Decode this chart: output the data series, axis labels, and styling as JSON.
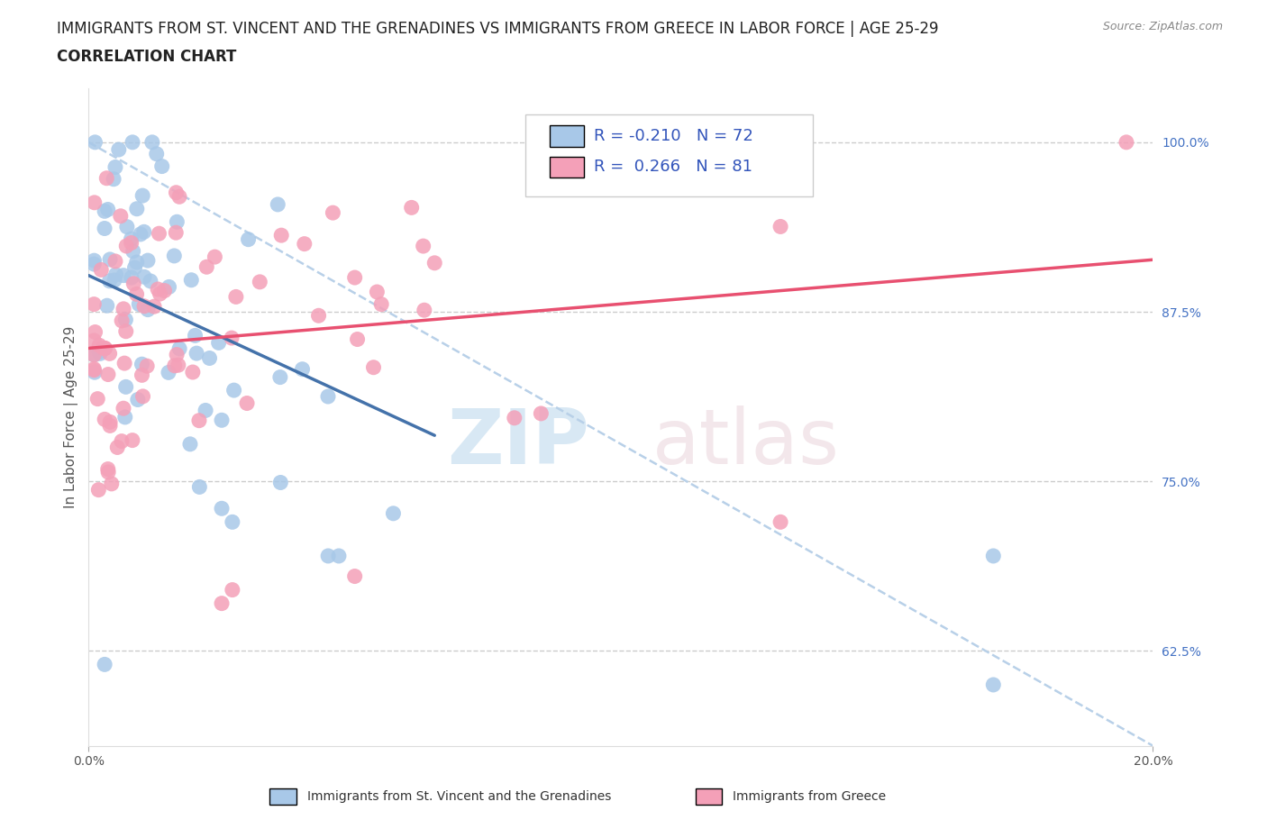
{
  "title_line1": "IMMIGRANTS FROM ST. VINCENT AND THE GRENADINES VS IMMIGRANTS FROM GREECE IN LABOR FORCE | AGE 25-29",
  "title_line2": "CORRELATION CHART",
  "source_text": "Source: ZipAtlas.com",
  "ylabel": "In Labor Force | Age 25-29",
  "legend_label1": "Immigrants from St. Vincent and the Grenadines",
  "legend_label2": "Immigrants from Greece",
  "r1": -0.21,
  "n1": 72,
  "r2": 0.266,
  "n2": 81,
  "color1": "#a8c8e8",
  "color2": "#f4a0b8",
  "line1_color": "#4472aa",
  "line2_color": "#e85070",
  "xlim": [
    0.0,
    0.2
  ],
  "ylim": [
    0.555,
    1.04
  ],
  "right_yticks": [
    1.0,
    0.875,
    0.75,
    0.625
  ],
  "right_yticklabels": [
    "100.0%",
    "87.5%",
    "75.0%",
    "62.5%"
  ],
  "title_fontsize": 12,
  "subtitle_fontsize": 12,
  "axis_fontsize": 11,
  "tick_fontsize": 10,
  "legend_fontsize": 13
}
